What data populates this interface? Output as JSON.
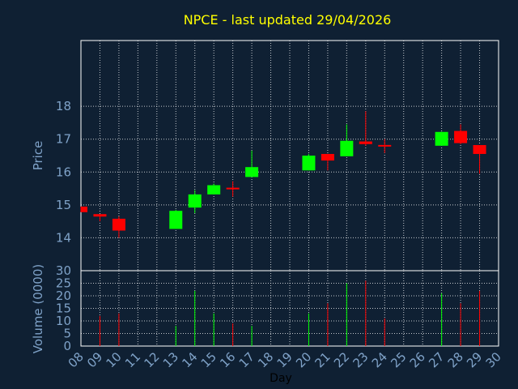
{
  "colors": {
    "background": "#0f2033",
    "up": "#00ff00",
    "down": "#ff0000",
    "grid": "#ffffff",
    "frame": "#ffffff",
    "text": "#7fa2c8",
    "title": "#ffff00"
  },
  "chart_data": [
    {
      "type": "candlestick",
      "title": "NPCE - last updated 29/04/2026",
      "ylabel": "Price",
      "ylim": [
        13,
        20
      ],
      "yticks": [
        "14",
        "15",
        "16",
        "17",
        "18"
      ],
      "grid": true,
      "days": [
        "08",
        "09",
        "10",
        "11",
        "12",
        "13",
        "14",
        "15",
        "16",
        "17",
        "18",
        "19",
        "20",
        "21",
        "22",
        "23",
        "24",
        "25",
        "26",
        "27",
        "28",
        "29",
        "30"
      ],
      "candles": [
        {
          "day": "08",
          "open": 14.95,
          "close": 14.78,
          "high": 14.95,
          "low": 14.78
        },
        {
          "day": "09",
          "open": 14.72,
          "close": 14.65,
          "high": 14.72,
          "low": 14.5
        },
        {
          "day": "10",
          "open": 14.58,
          "close": 14.22,
          "high": 14.65,
          "low": 14.0
        },
        {
          "day": "13",
          "open": 14.27,
          "close": 14.82,
          "high": 14.85,
          "low": 14.27
        },
        {
          "day": "14",
          "open": 14.92,
          "close": 15.32,
          "high": 15.45,
          "low": 14.75
        },
        {
          "day": "15",
          "open": 15.32,
          "close": 15.6,
          "high": 15.65,
          "low": 15.32
        },
        {
          "day": "16",
          "open": 15.5,
          "close": 15.5,
          "high": 15.72,
          "low": 15.25
        },
        {
          "day": "17",
          "open": 15.85,
          "close": 16.15,
          "high": 16.65,
          "low": 15.85
        },
        {
          "day": "20",
          "open": 16.05,
          "close": 16.5,
          "high": 16.55,
          "low": 16.05
        },
        {
          "day": "21",
          "open": 16.55,
          "close": 16.35,
          "high": 16.55,
          "low": 16.05
        },
        {
          "day": "22",
          "open": 16.48,
          "close": 16.95,
          "high": 17.45,
          "low": 16.48
        },
        {
          "day": "23",
          "open": 16.93,
          "close": 16.85,
          "high": 17.85,
          "low": 16.8
        },
        {
          "day": "24",
          "open": 16.8,
          "close": 16.8,
          "high": 17.0,
          "low": 16.58
        },
        {
          "day": "27",
          "open": 16.8,
          "close": 17.22,
          "high": 17.22,
          "low": 16.8
        },
        {
          "day": "28",
          "open": 17.25,
          "close": 16.88,
          "high": 17.45,
          "low": 16.85
        },
        {
          "day": "29",
          "open": 16.82,
          "close": 16.55,
          "high": 16.82,
          "low": 15.95
        }
      ]
    },
    {
      "type": "bar",
      "ylabel": "Volume (0000)",
      "xlabel": "Day",
      "ylim": [
        0,
        30
      ],
      "yticks": [
        "0",
        "5",
        "10",
        "15",
        "20",
        "25",
        "30"
      ],
      "grid": true,
      "categories": [
        "08",
        "09",
        "10",
        "11",
        "12",
        "13",
        "14",
        "15",
        "16",
        "17",
        "18",
        "19",
        "20",
        "21",
        "22",
        "23",
        "24",
        "25",
        "26",
        "27",
        "28",
        "29",
        "30"
      ],
      "values": [
        0,
        12,
        13,
        0,
        0,
        8,
        22,
        13,
        9,
        8,
        0,
        0,
        13,
        17,
        25,
        26,
        11,
        0,
        0,
        21,
        17,
        22,
        0
      ],
      "colors": [
        "down",
        "down",
        "down",
        "none",
        "none",
        "up",
        "up",
        "up",
        "down",
        "up",
        "none",
        "none",
        "up",
        "down",
        "up",
        "down",
        "down",
        "none",
        "none",
        "up",
        "down",
        "down",
        "none"
      ]
    }
  ]
}
